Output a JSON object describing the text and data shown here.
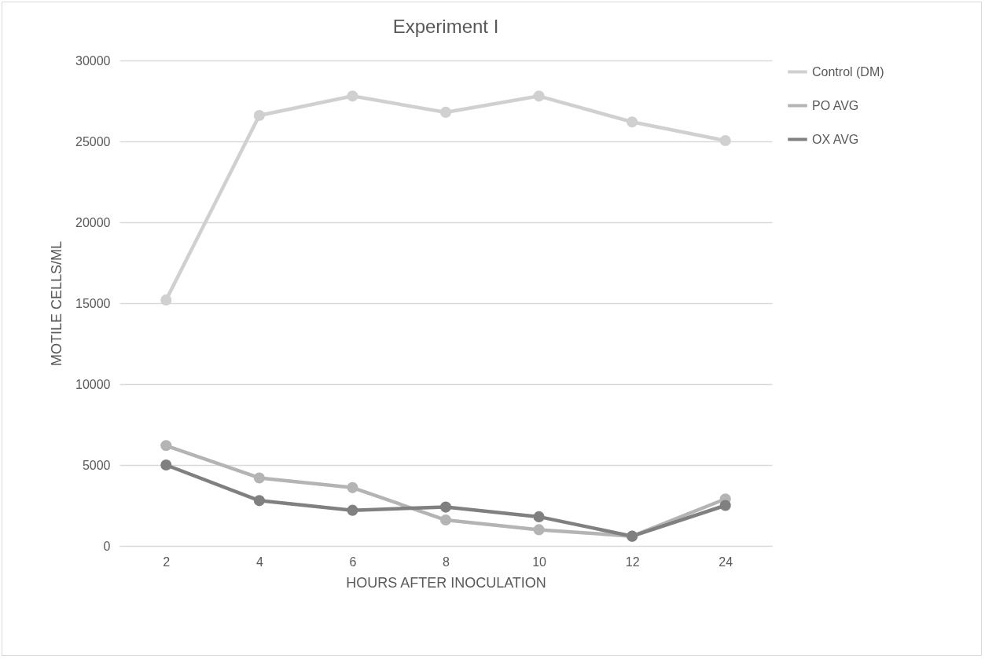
{
  "chart_data": {
    "type": "line",
    "title": "Experiment I",
    "xlabel": "HOURS AFTER INOCULATION",
    "ylabel": "MOTILE CELLS/ML",
    "categories": [
      "2",
      "4",
      "6",
      "8",
      "10",
      "12",
      "24"
    ],
    "series": [
      {
        "name": "Control (DM)",
        "color": "#d0d0d0",
        "values": [
          15200,
          26600,
          27800,
          26800,
          27800,
          26200,
          25050
        ]
      },
      {
        "name": "PO AVG",
        "color": "#b4b4b4",
        "values": [
          6200,
          4200,
          3600,
          1600,
          1000,
          600,
          2900
        ]
      },
      {
        "name": "OX AVG",
        "color": "#808080",
        "values": [
          5000,
          2800,
          2200,
          2400,
          1800,
          600,
          2500
        ]
      }
    ],
    "ylim": [
      0,
      30000
    ],
    "yticks": [
      0,
      5000,
      10000,
      15000,
      20000,
      25000,
      30000
    ],
    "grid": "y",
    "legend": "right",
    "marker": "circle",
    "line_style": "solid"
  }
}
